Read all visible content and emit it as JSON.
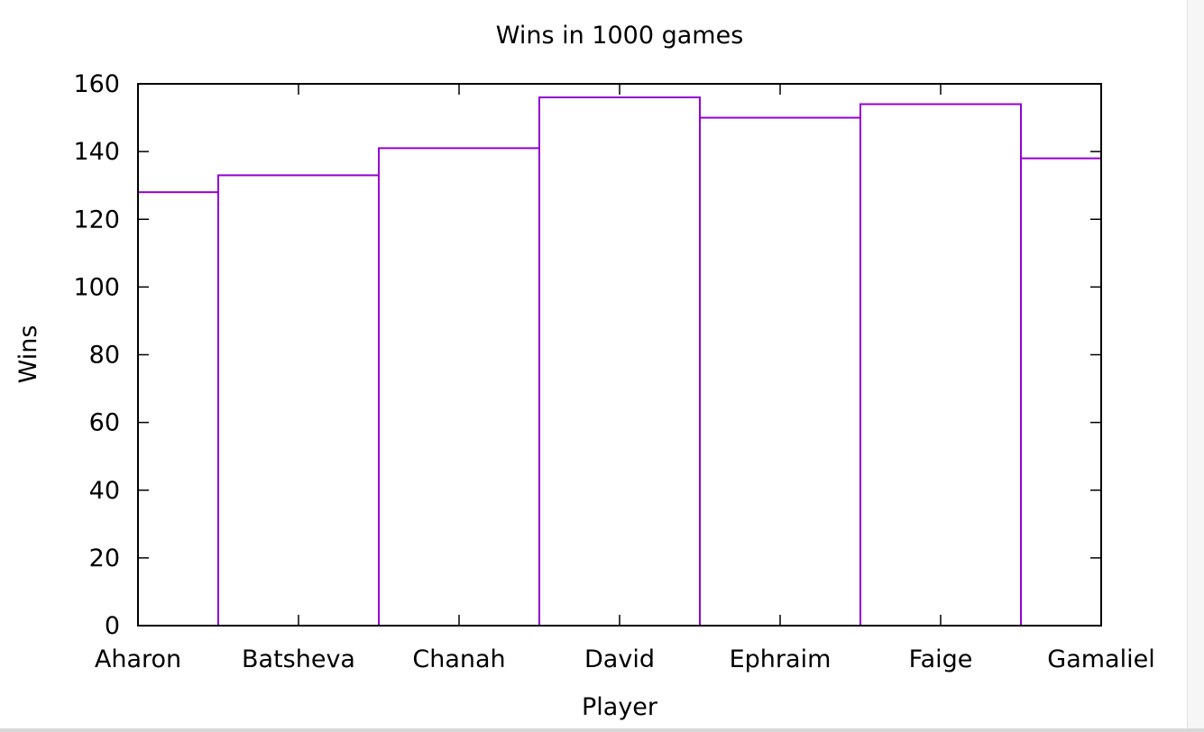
{
  "chart_data": {
    "type": "bar",
    "style": "step",
    "title": "Wins in 1000 games",
    "xlabel": "Player",
    "ylabel": "Wins",
    "categories": [
      "Aharon",
      "Batsheva",
      "Chanah",
      "David",
      "Ephraim",
      "Faige",
      "Gamaliel"
    ],
    "values": [
      128,
      133,
      141,
      156,
      150,
      154,
      138
    ],
    "ylim": [
      0,
      160
    ],
    "yticks": [
      "0",
      "20",
      "40",
      "60",
      "80",
      "100",
      "120",
      "140",
      "160"
    ],
    "grid": false,
    "legend": "none",
    "colors": {
      "bars": "#9400d3",
      "axes": "#000000"
    }
  }
}
